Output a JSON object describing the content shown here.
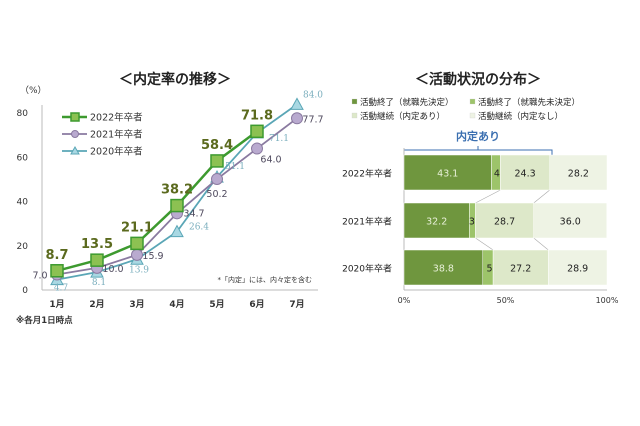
{
  "chart_data": [
    {
      "type": "line",
      "title": "＜内定率の推移＞",
      "ylabel": "（%）",
      "ylim": [
        0,
        90
      ],
      "yticks": [
        "0",
        "20",
        "40",
        "60",
        "80"
      ],
      "categories": [
        "1月",
        "2月",
        "3月",
        "4月",
        "5月",
        "6月",
        "7月"
      ],
      "series": [
        {
          "name": "2022年卒者",
          "values": [
            8.7,
            13.5,
            21.1,
            38.2,
            58.4,
            71.8,
            null
          ],
          "labels": [
            "8.7",
            "13.5",
            "21.1",
            "38.2",
            "58.4",
            "71.8",
            ""
          ],
          "color": "#3d9a2f",
          "marker": "square",
          "marker_fill": "#8cc152",
          "label_color": "#5b6a1e"
        },
        {
          "name": "2021年卒者",
          "values": [
            7.0,
            10.0,
            15.9,
            34.7,
            50.2,
            64.0,
            77.7
          ],
          "labels": [
            "7.0",
            "10.0",
            "15.9",
            "34.7",
            "50.2",
            "64.0",
            "77.7"
          ],
          "color": "#8a7aa0",
          "marker": "circle",
          "marker_fill": "#b9aacf",
          "label_color": "#4f4a5e"
        },
        {
          "name": "2020年卒者",
          "values": [
            4.7,
            8.1,
            13.9,
            26.4,
            51.1,
            71.1,
            84.0
          ],
          "labels": [
            "4.7",
            "8.1",
            "13.9",
            "26.4",
            "51.1",
            "71.1",
            "84.0"
          ],
          "color": "#5aa6b6",
          "marker": "triangle",
          "marker_fill": "#a9d8e3",
          "label_color": "#7aaebd"
        }
      ],
      "note": "*「内定」には、内々定を含む",
      "footnote": "※各月1日時点",
      "legend": "top-left",
      "grid": false
    },
    {
      "type": "bar",
      "stacked": true,
      "orientation": "horizontal",
      "title": "＜活動状況の分布＞",
      "categories": [
        "2022年卒者",
        "2021年卒者",
        "2020年卒者"
      ],
      "series": [
        {
          "name": "活動終了（就職先決定）",
          "values": [
            43.1,
            32.2,
            38.8
          ],
          "color": "#6f963e"
        },
        {
          "name": "活動終了（就職先未決定）",
          "values": [
            4.4,
            3.0,
            5.1
          ],
          "color": "#9dc46a"
        },
        {
          "name": "活動継続（内定あり）",
          "values": [
            24.3,
            28.7,
            27.2
          ],
          "color": "#dde8c9"
        },
        {
          "name": "活動継続（内定なし）",
          "values": [
            28.2,
            36.0,
            28.9
          ],
          "color": "#eef3e4"
        }
      ],
      "xlim": [
        0,
        100
      ],
      "xticks": [
        "0%",
        "50%",
        "100%"
      ],
      "annotation": "内定あり",
      "legend": "top"
    }
  ]
}
